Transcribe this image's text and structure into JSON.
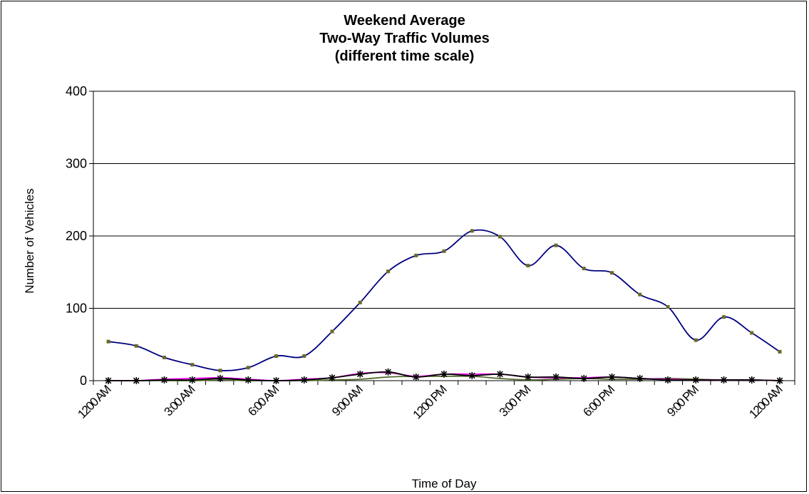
{
  "chart_data": {
    "type": "line",
    "title_lines": [
      "Weekend Average",
      "Two-Way Traffic Volumes",
      "(different time scale)"
    ],
    "xlabel": "Time of Day",
    "ylabel": "Number of Vehicles",
    "ylim": [
      0,
      400
    ],
    "y_ticks": [
      "0",
      "100",
      "200",
      "300",
      "400"
    ],
    "x_ticks": [
      "1200 AM",
      "3:00 AM",
      "6:00 AM",
      "9:00 AM",
      "1200 PM",
      "3:00 PM",
      "6:00 PM",
      "9:00 PM",
      "1200 AM"
    ],
    "grid": true,
    "legend": "none",
    "series": [
      {
        "color": "#000080",
        "marker": "dot",
        "values": [
          54,
          48,
          32,
          22,
          14,
          18,
          34,
          34,
          68,
          108,
          151,
          173,
          179,
          207,
          199,
          159,
          187,
          155,
          149,
          119,
          102,
          56,
          88,
          66,
          40
        ]
      },
      {
        "color": "#ff00ff",
        "marker": "none",
        "values": [
          0,
          0,
          2,
          3,
          4,
          2,
          0,
          2,
          4,
          10,
          11,
          6,
          9,
          9,
          9,
          5,
          4,
          4,
          5,
          3,
          2,
          1,
          1,
          1,
          0
        ]
      },
      {
        "color": "#556b2f",
        "marker": "none",
        "values": [
          0,
          0,
          0,
          0,
          1,
          0,
          0,
          0,
          1,
          2,
          5,
          6,
          6,
          6,
          3,
          1,
          2,
          3,
          2,
          2,
          3,
          2,
          1,
          1,
          0
        ]
      },
      {
        "color": "#000000",
        "marker": "star",
        "values": [
          0,
          0,
          1,
          1,
          3,
          1,
          0,
          1,
          4,
          9,
          12,
          5,
          9,
          7,
          9,
          5,
          5,
          3,
          5,
          3,
          1,
          1,
          1,
          1,
          0
        ]
      }
    ]
  }
}
